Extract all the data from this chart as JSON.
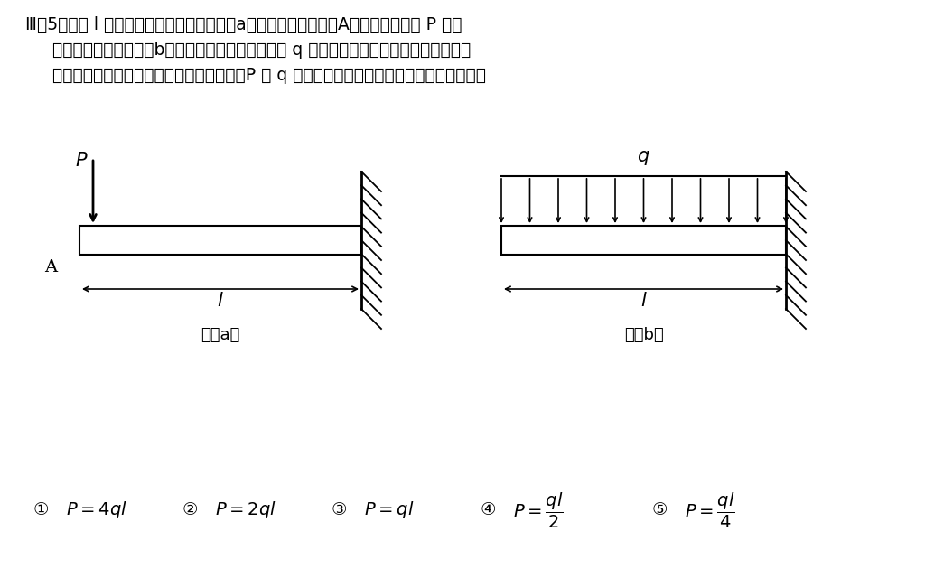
{
  "title_line1": "Ⅲ－5　長さ l の片持ちはりに対して，図（a）のように自由端（A点）に集中荷重 P を作",
  "title_line2": "用させる場合と，図（b）のように単位長さあたり q の等分布荷重を作用させる場合を考",
  "title_line3": "える。両者の最大曲げ応力が等しいとき，P と q の関係として，最も適切なものはどれか。",
  "fig_a_label": "図（a）",
  "fig_b_label": "図（b）",
  "label_A": "A",
  "label_P_a": "$P$",
  "label_q": "$q$",
  "label_l_a": "$l$",
  "label_l_b": "$l$",
  "options": [
    {
      "num": "①",
      "expr": "$P = 4ql$"
    },
    {
      "num": "②",
      "expr": "$P = 2ql$"
    },
    {
      "num": "③",
      "expr": "$P = ql$"
    },
    {
      "num": "④",
      "expr": "$P = \\dfrac{ql}{2}$"
    },
    {
      "num": "⑤",
      "expr": "$P = \\dfrac{ql}{4}$"
    }
  ],
  "bg_color": "#ffffff",
  "line_color": "#000000",
  "text_color": "#000000",
  "fontsize_title": 13.5,
  "fontsize_label": 13,
  "fontsize_options": 14
}
